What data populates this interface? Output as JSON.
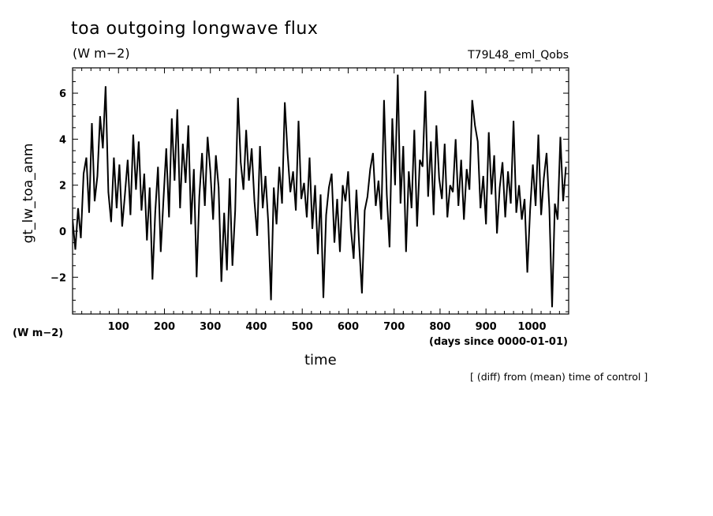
{
  "header": {
    "title": "toa outgoing longwave flux",
    "units": "(W m−2)",
    "run_name": "T79L48_eml_Qobs"
  },
  "footer": {
    "y_units": "(W m−2)",
    "x_units": "(days since 0000-01-01)",
    "note": "[ (diff) from (mean) time of control ]"
  },
  "chart_data": {
    "type": "line",
    "title": "toa outgoing longwave flux",
    "xlabel": "time",
    "ylabel": "gt_lw_toa_anm",
    "xlim": [
      0,
      1080
    ],
    "ylim": [
      -3.6,
      7.1
    ],
    "x_ticks": [
      100,
      200,
      300,
      400,
      500,
      600,
      700,
      800,
      900,
      1000
    ],
    "y_ticks": [
      -2,
      0,
      2,
      4,
      6
    ],
    "grid": false,
    "color": "#000000",
    "series": [
      {
        "x": [
          0,
          6,
          12,
          18,
          24,
          30,
          36,
          42,
          48,
          54,
          60,
          66,
          72,
          78,
          84,
          90,
          96,
          102,
          108,
          114,
          120,
          126,
          132,
          138,
          144,
          150,
          156,
          162,
          168,
          174,
          180,
          186,
          192,
          198,
          204,
          210,
          216,
          222,
          228,
          234,
          240,
          246,
          252,
          258,
          264,
          270,
          276,
          282,
          288,
          294,
          300,
          306,
          312,
          318,
          324,
          330,
          336,
          342,
          348,
          354,
          360,
          366,
          372,
          378,
          384,
          390,
          396,
          402,
          408,
          414,
          420,
          426,
          432,
          438,
          444,
          450,
          456,
          462,
          468,
          474,
          480,
          486,
          492,
          498,
          504,
          510,
          516,
          522,
          528,
          534,
          540,
          546,
          552,
          558,
          564,
          570,
          576,
          582,
          588,
          594,
          600,
          606,
          612,
          618,
          624,
          630,
          636,
          642,
          648,
          654,
          660,
          666,
          672,
          678,
          684,
          690,
          696,
          702,
          708,
          714,
          720,
          726,
          732,
          738,
          744,
          750,
          756,
          762,
          768,
          774,
          780,
          786,
          792,
          798,
          804,
          810,
          816,
          822,
          828,
          834,
          840,
          846,
          852,
          858,
          864,
          870,
          876,
          882,
          888,
          894,
          900,
          906,
          912,
          918,
          924,
          930,
          936,
          942,
          948,
          954,
          960,
          966,
          972,
          978,
          984,
          990,
          996,
          1002,
          1008,
          1014,
          1020,
          1026,
          1032,
          1038,
          1044,
          1050,
          1056,
          1062,
          1068,
          1074
        ],
        "y": [
          0.5,
          -0.8,
          1.0,
          -0.3,
          2.5,
          3.2,
          0.8,
          4.7,
          1.3,
          2.4,
          5.0,
          3.6,
          6.3,
          1.7,
          0.4,
          3.2,
          1.0,
          2.9,
          0.2,
          1.6,
          3.1,
          0.7,
          4.2,
          1.8,
          3.9,
          0.9,
          2.5,
          -0.4,
          1.9,
          -2.1,
          0.8,
          2.8,
          -0.9,
          1.4,
          3.6,
          0.6,
          4.9,
          2.2,
          5.3,
          1.0,
          3.8,
          2.1,
          4.6,
          0.3,
          2.7,
          -2.0,
          1.5,
          3.4,
          1.1,
          4.1,
          2.6,
          0.5,
          3.3,
          1.9,
          -2.2,
          0.8,
          -1.7,
          2.3,
          -1.5,
          0.9,
          5.8,
          3.0,
          1.8,
          4.4,
          2.2,
          3.6,
          1.3,
          -0.2,
          3.7,
          1.0,
          2.4,
          0.4,
          -3.0,
          1.9,
          0.3,
          2.8,
          1.2,
          5.6,
          3.4,
          1.7,
          2.6,
          0.9,
          4.8,
          1.4,
          2.1,
          0.6,
          3.2,
          0.1,
          2.0,
          -1.0,
          1.6,
          -2.9,
          0.7,
          1.9,
          2.5,
          -0.5,
          1.4,
          -0.9,
          2.0,
          1.3,
          2.6,
          0.1,
          -1.2,
          1.8,
          -0.6,
          -2.7,
          0.9,
          1.5,
          2.7,
          3.4,
          1.1,
          2.2,
          0.5,
          5.7,
          1.6,
          -0.7,
          4.9,
          2.0,
          6.8,
          1.2,
          3.7,
          -0.9,
          2.6,
          1.0,
          4.4,
          0.2,
          3.1,
          2.8,
          6.1,
          1.5,
          3.9,
          0.7,
          4.6,
          2.3,
          1.4,
          3.8,
          0.6,
          2.0,
          1.7,
          4.0,
          1.1,
          3.1,
          0.5,
          2.7,
          1.8,
          5.7,
          4.6,
          3.9,
          1.0,
          2.4,
          0.3,
          4.3,
          1.6,
          3.3,
          -0.1,
          1.9,
          3.0,
          0.6,
          2.6,
          1.2,
          4.8,
          0.8,
          2.0,
          0.5,
          1.4,
          -1.8,
          0.9,
          2.9,
          1.1,
          4.2,
          0.7,
          2.3,
          3.4,
          1.0,
          -3.3,
          1.2,
          0.5,
          4.1,
          1.3,
          2.8
        ]
      }
    ]
  }
}
